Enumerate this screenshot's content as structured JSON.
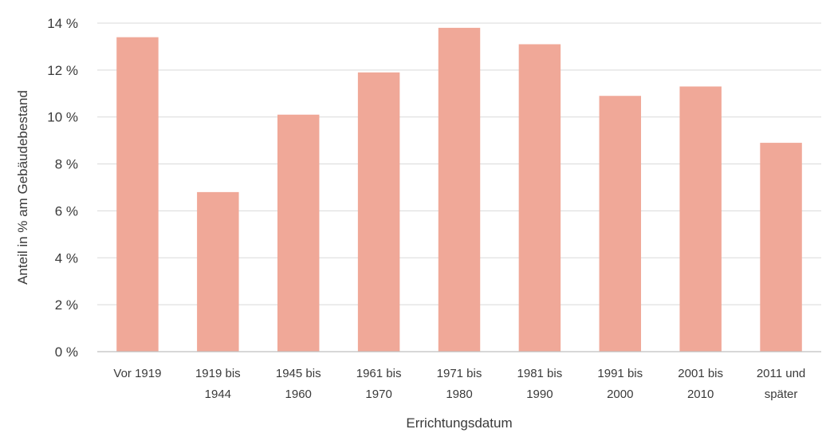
{
  "chart_data": {
    "type": "bar",
    "categories": [
      [
        "Vor 1919"
      ],
      [
        "1919 bis",
        "1944"
      ],
      [
        "1945 bis",
        "1960"
      ],
      [
        "1961 bis",
        "1970"
      ],
      [
        "1971 bis",
        "1980"
      ],
      [
        "1981 bis",
        "1990"
      ],
      [
        "1991 bis",
        "2000"
      ],
      [
        "2001 bis",
        "2010"
      ],
      [
        "2011 und",
        "später"
      ]
    ],
    "values": [
      13.4,
      6.8,
      10.1,
      11.9,
      13.8,
      13.1,
      10.9,
      11.3,
      8.9
    ],
    "xlabel": "Errichtungsdatum",
    "ylabel": "Anteil in % am Gebäudebestand",
    "ylim": [
      0,
      14
    ],
    "yticks": [
      "0 %",
      "2 %",
      "4 %",
      "6 %",
      "8 %",
      "10 %",
      "12 %",
      "14 %"
    ],
    "grid": true,
    "bar_color": "#f0a898"
  }
}
